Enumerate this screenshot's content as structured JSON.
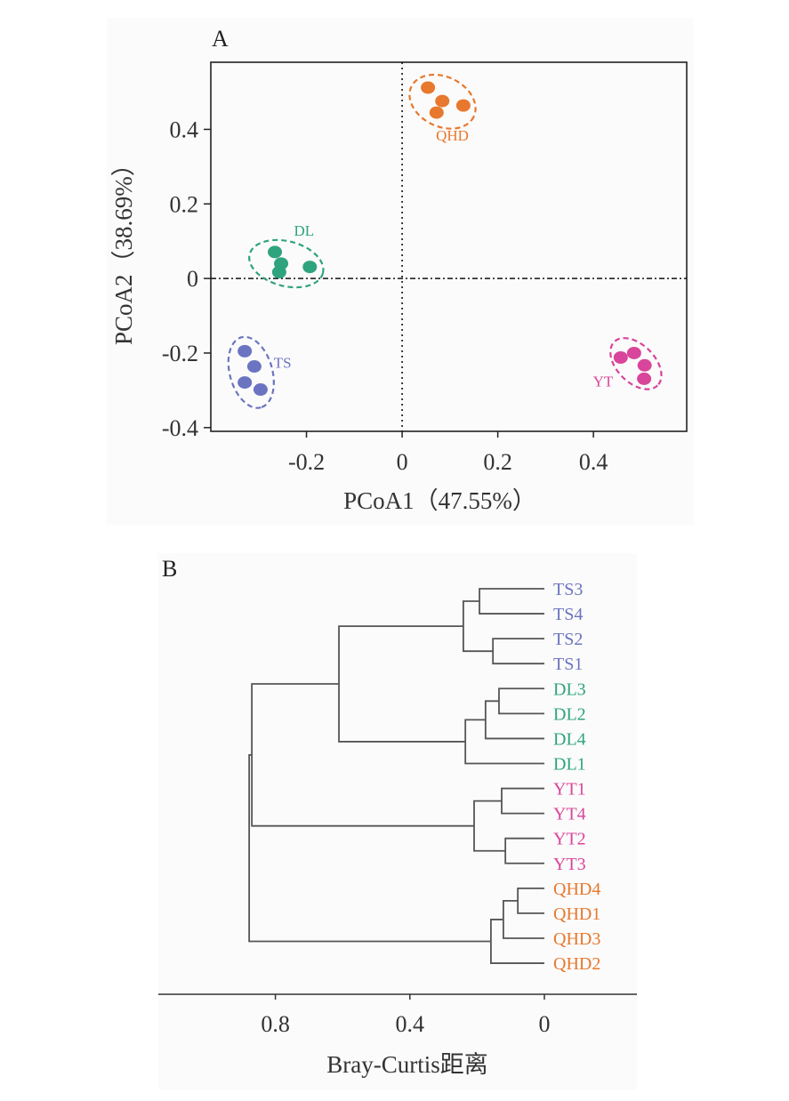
{
  "chart_data": [
    {
      "type": "scatter",
      "panel_label": "A",
      "title": "",
      "xlabel": "PCoA1（47.55%）",
      "ylabel": "PCoA2（38.69%）",
      "xlim": [
        -0.4,
        0.595
      ],
      "ylim": [
        -0.41,
        0.58
      ],
      "xticks": [
        -0.2,
        0,
        0.2,
        0.4
      ],
      "xtick_labels": [
        "-0.2",
        "0",
        "0.2",
        "0.4"
      ],
      "yticks": [
        0.4,
        0.2,
        0,
        -0.2,
        -0.4
      ],
      "ytick_labels": [
        "0.4",
        "0.2",
        "0",
        "-0.2",
        "-0.4"
      ],
      "reference_lines": {
        "x": 0,
        "y": 0,
        "style": "dash-dot"
      },
      "grid": false,
      "series": [
        {
          "name": "QHD",
          "color": "#e8782d",
          "x": [
            0.054,
            0.084,
            0.128,
            0.072
          ],
          "y": [
            0.512,
            0.476,
            0.464,
            0.445
          ],
          "label_pos": [
            0.105,
            0.37
          ]
        },
        {
          "name": "DL",
          "color": "#2fa37e",
          "x": [
            -0.266,
            -0.253,
            -0.193,
            -0.257
          ],
          "y": [
            0.071,
            0.04,
            0.031,
            0.017
          ],
          "label_pos": [
            -0.205,
            0.115
          ]
        },
        {
          "name": "TS",
          "color": "#6b74c0",
          "x": [
            -0.329,
            -0.309,
            -0.329,
            -0.296
          ],
          "y": [
            -0.195,
            -0.236,
            -0.279,
            -0.298
          ],
          "label_pos": [
            -0.25,
            -0.24
          ]
        },
        {
          "name": "YT",
          "color": "#d9459a",
          "x": [
            0.457,
            0.485,
            0.507,
            0.506
          ],
          "y": [
            -0.212,
            -0.2,
            -0.233,
            -0.269
          ],
          "label_pos": [
            0.42,
            -0.29
          ]
        }
      ]
    },
    {
      "type": "dendrogram",
      "panel_label": "B",
      "xlabel": "Bray-Curtis距离",
      "xlim": [
        1.15,
        -0.26
      ],
      "xticks": [
        0.8,
        0.4,
        0
      ],
      "xtick_labels": [
        "0.8",
        "0.4",
        "0"
      ],
      "leaves": [
        {
          "name": "TS3",
          "group": "TS"
        },
        {
          "name": "TS4",
          "group": "TS"
        },
        {
          "name": "TS2",
          "group": "TS"
        },
        {
          "name": "TS1",
          "group": "TS"
        },
        {
          "name": "DL3",
          "group": "DL"
        },
        {
          "name": "DL2",
          "group": "DL"
        },
        {
          "name": "DL4",
          "group": "DL"
        },
        {
          "name": "DL1",
          "group": "DL"
        },
        {
          "name": "YT1",
          "group": "YT"
        },
        {
          "name": "YT4",
          "group": "YT"
        },
        {
          "name": "YT2",
          "group": "YT"
        },
        {
          "name": "YT3",
          "group": "YT"
        },
        {
          "name": "QHD4",
          "group": "QHD"
        },
        {
          "name": "QHD1",
          "group": "QHD"
        },
        {
          "name": "QHD3",
          "group": "QHD"
        },
        {
          "name": "QHD2",
          "group": "QHD"
        }
      ],
      "group_colors": {
        "TS": "#6b74c0",
        "DL": "#2fa37e",
        "YT": "#d9459a",
        "QHD": "#e8782d"
      },
      "merges": [
        {
          "id": "m1",
          "a": "TS3",
          "b": "TS4",
          "height": 0.193
        },
        {
          "id": "m2",
          "a": "TS2",
          "b": "TS1",
          "height": 0.153
        },
        {
          "id": "m3",
          "a": "m1",
          "b": "m2",
          "height": 0.241
        },
        {
          "id": "m4",
          "a": "DL3",
          "b": "DL2",
          "height": 0.135
        },
        {
          "id": "m5",
          "a": "m4",
          "b": "DL4",
          "height": 0.175
        },
        {
          "id": "m6",
          "a": "m5",
          "b": "DL1",
          "height": 0.235
        },
        {
          "id": "m7",
          "a": "m3",
          "b": "m6",
          "height": 0.611
        },
        {
          "id": "m8",
          "a": "YT1",
          "b": "YT4",
          "height": 0.127
        },
        {
          "id": "m9",
          "a": "YT2",
          "b": "YT3",
          "height": 0.116
        },
        {
          "id": "m10",
          "a": "m8",
          "b": "m9",
          "height": 0.209
        },
        {
          "id": "m11",
          "a": "m7",
          "b": "m10",
          "height": 0.87
        },
        {
          "id": "m12",
          "a": "QHD4",
          "b": "QHD1",
          "height": 0.079
        },
        {
          "id": "m13",
          "a": "m12",
          "b": "QHD3",
          "height": 0.122
        },
        {
          "id": "m14",
          "a": "m13",
          "b": "QHD2",
          "height": 0.159
        },
        {
          "id": "m15",
          "a": "m11",
          "b": "m14",
          "height": 0.878
        }
      ]
    }
  ]
}
